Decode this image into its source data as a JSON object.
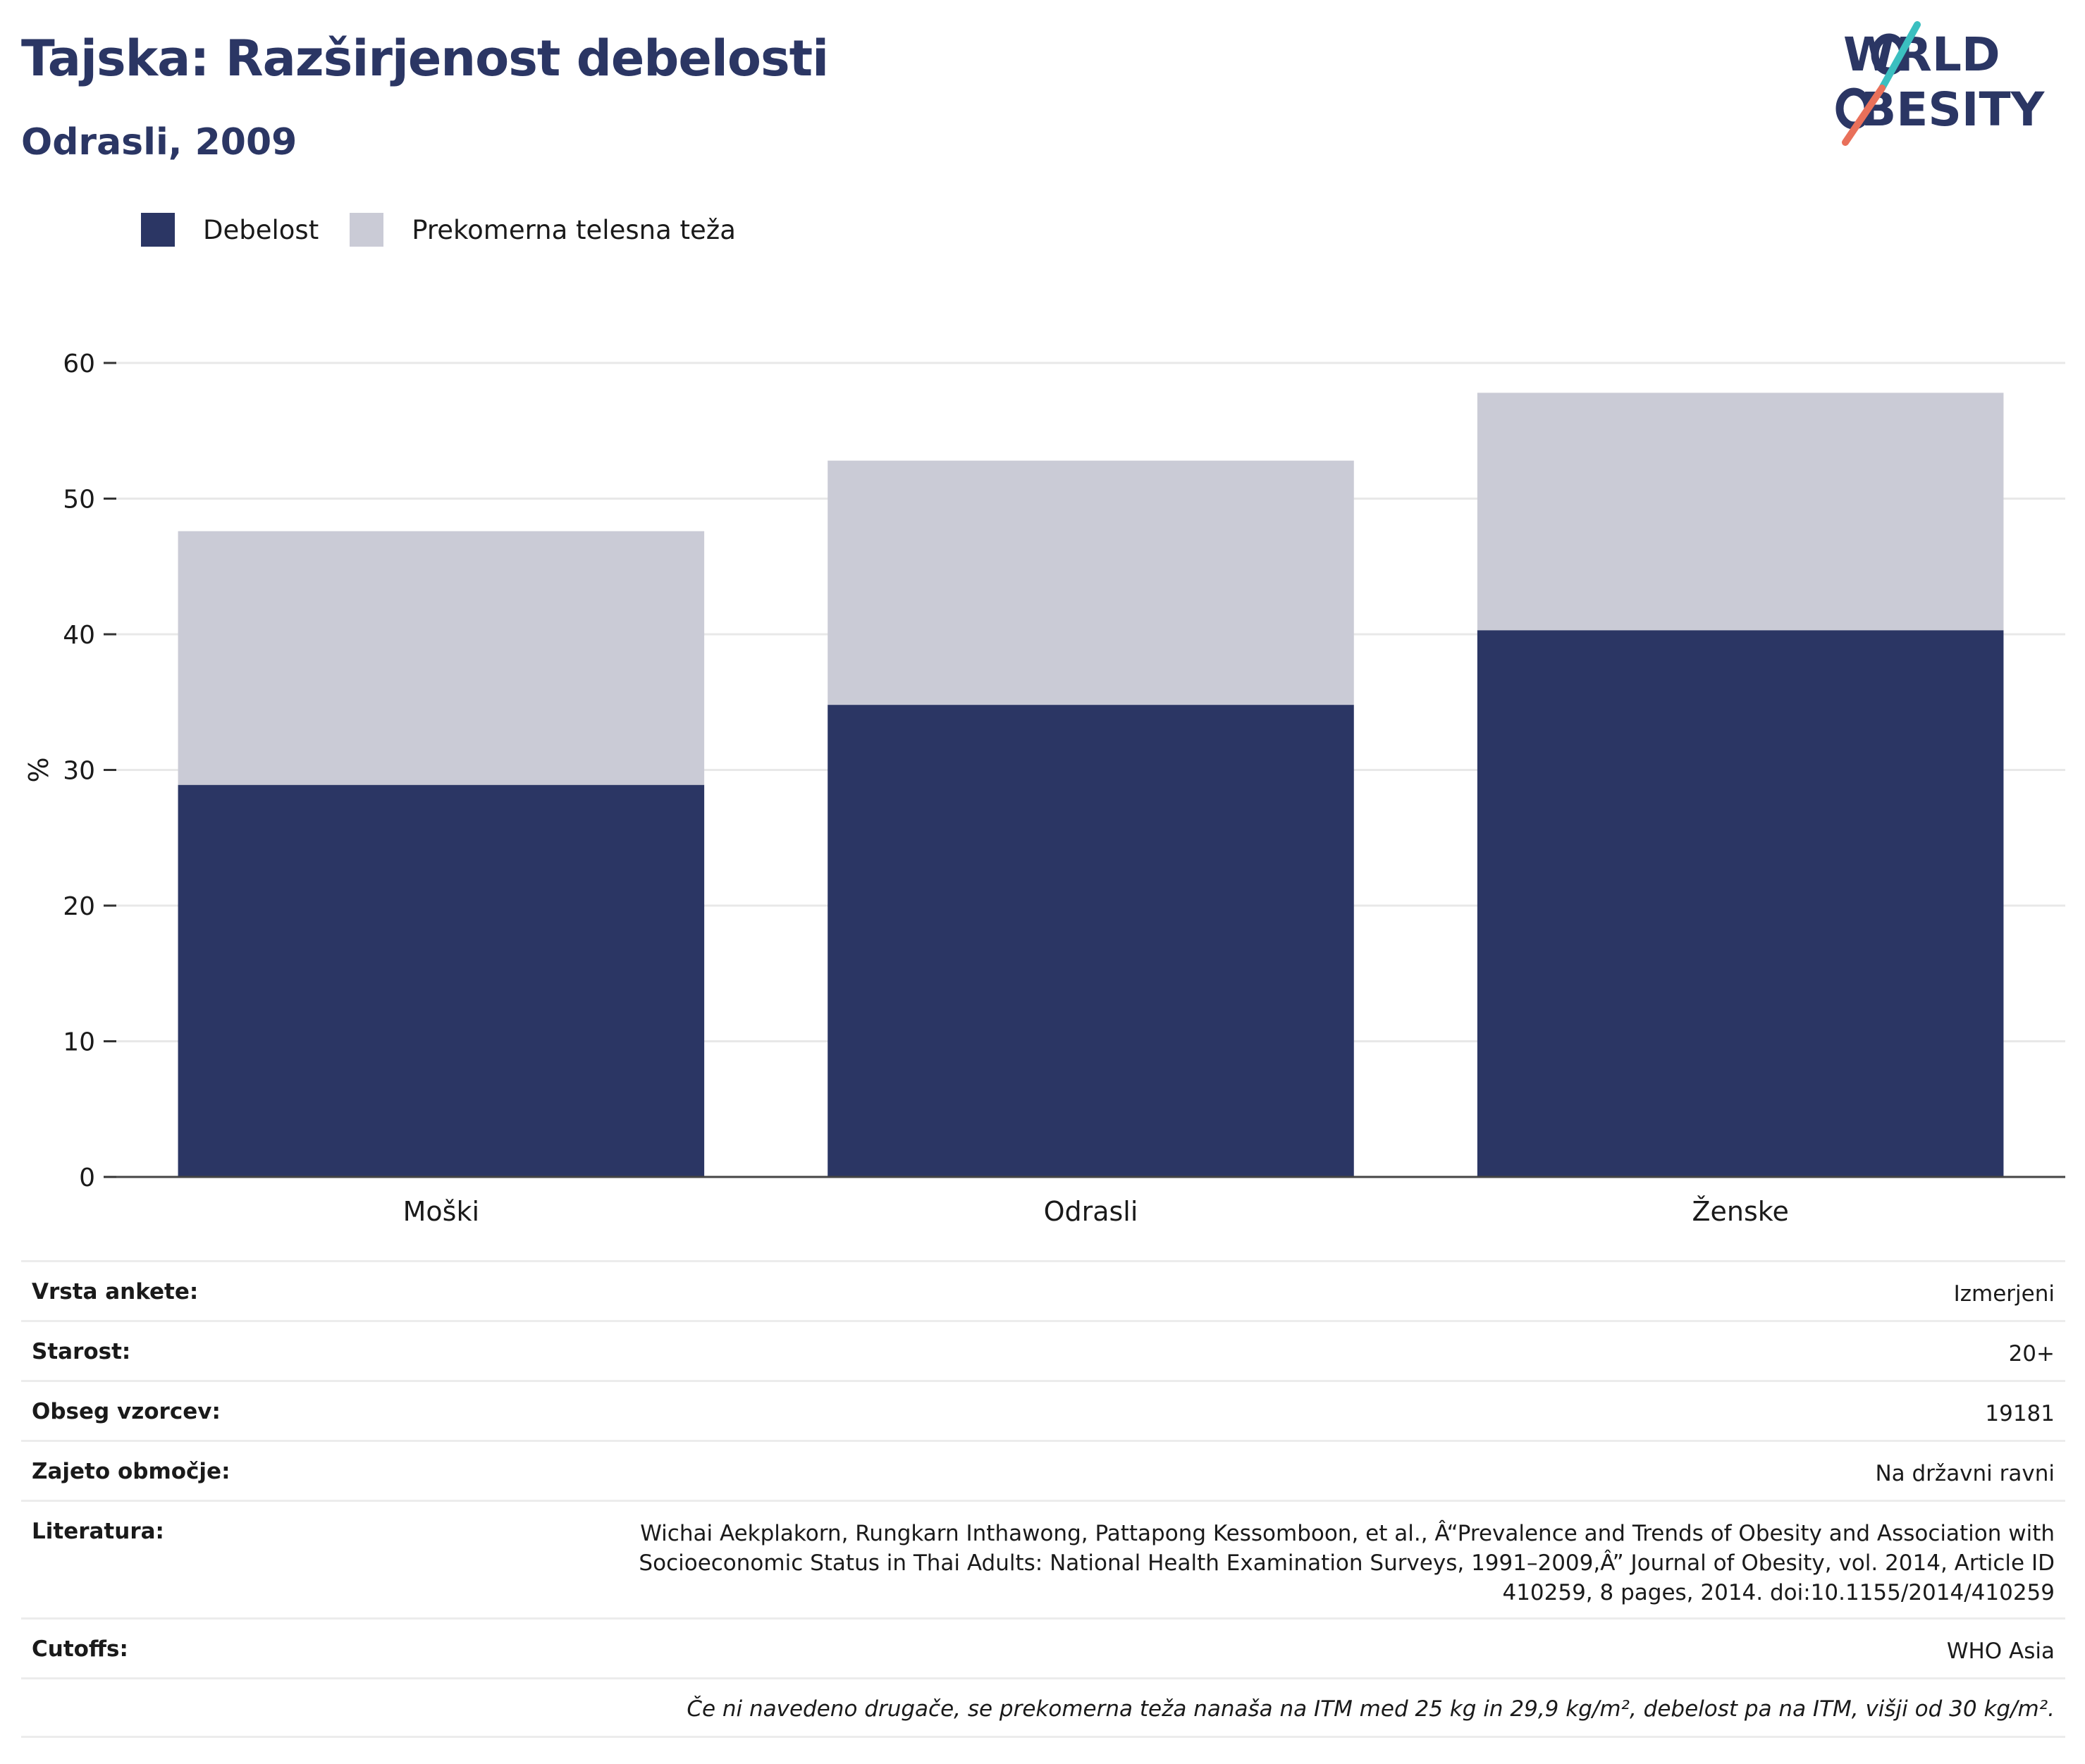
{
  "header": {
    "title": "Tajska: Razširjenost debelosti",
    "subtitle": "Odrasli, 2009"
  },
  "logo": {
    "line1": "WORLD",
    "line2": "OBESITY"
  },
  "legend": [
    {
      "label": "Debelost",
      "color": "#2b3664"
    },
    {
      "label": "Prekomerna telesna teža",
      "color": "#cacbd6"
    }
  ],
  "chart_data": {
    "type": "bar",
    "stacked": true,
    "categories": [
      "Moški",
      "Odrasli",
      "Ženske"
    ],
    "series": [
      {
        "name": "Debelost",
        "values": [
          28.9,
          34.8,
          40.3
        ],
        "color": "#2b3664"
      },
      {
        "name": "Prekomerna telesna teža",
        "values": [
          18.7,
          18.0,
          17.5
        ],
        "color": "#cacbd6"
      }
    ],
    "ylabel": "%",
    "ylim": [
      0,
      60
    ],
    "yticks": [
      0,
      10,
      20,
      30,
      40,
      50,
      60
    ],
    "grid": true,
    "legend_position": "top-left"
  },
  "info": {
    "rows": [
      {
        "key": "Vrsta ankete:",
        "value": "Izmerjeni"
      },
      {
        "key": "Starost:",
        "value": "20+"
      },
      {
        "key": "Obseg vzorcev:",
        "value": "19181"
      },
      {
        "key": "Zajeto območje:",
        "value": "Na državni ravni"
      },
      {
        "key": "Literatura:",
        "value": "Wichai Aekplakorn, Rungkarn Inthawong, Pattapong Kessomboon, et al., Â“Prevalence and Trends of Obesity and Association with Socioeconomic Status in Thai Adults: National Health Examination Surveys, 1991–2009,Â” Journal of Obesity, vol. 2014, Article ID 410259, 8 pages, 2014. doi:10.1155/2014/410259"
      },
      {
        "key": "Cutoffs:",
        "value": "WHO Asia"
      }
    ],
    "note": "Če ni navedeno drugače, se prekomerna teža nanaša na ITM med 25 kg in 29,9 kg/m², debelost pa na ITM, višji od 30 kg/m²."
  }
}
